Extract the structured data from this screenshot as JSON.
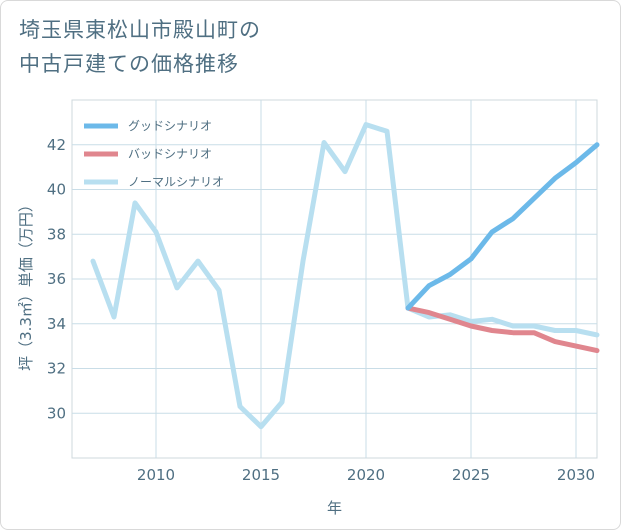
{
  "title_lines": [
    "埼玉県東松山市殿山町の",
    "中古戸建ての価格推移"
  ],
  "chart_data": {
    "type": "line",
    "title": "埼玉県東松山市殿山町の中古戸建ての価格推移",
    "xlabel": "年",
    "ylabel": "坪（3.3㎡）単価（万円）",
    "xlim": [
      2006,
      2031
    ],
    "ylim": [
      28,
      44
    ],
    "xticks": [
      2010,
      2015,
      2020,
      2025,
      2030
    ],
    "yticks": [
      30,
      32,
      34,
      36,
      38,
      40,
      42
    ],
    "grid": true,
    "legend_position": "top-left",
    "series": [
      {
        "name": "グッドシナリオ",
        "color": "#6cb9e9",
        "x": [
          2022,
          2023,
          2024,
          2025,
          2026,
          2027,
          2028,
          2029,
          2030,
          2031
        ],
        "values": [
          34.7,
          35.7,
          36.2,
          36.9,
          38.1,
          38.7,
          39.6,
          40.5,
          41.2,
          42.0
        ]
      },
      {
        "name": "バッドシナリオ",
        "color": "#e0868e",
        "x": [
          2022,
          2023,
          2024,
          2025,
          2026,
          2027,
          2028,
          2029,
          2030,
          2031
        ],
        "values": [
          34.7,
          34.5,
          34.2,
          33.9,
          33.7,
          33.6,
          33.6,
          33.2,
          33.0,
          32.8
        ]
      },
      {
        "name": "ノーマルシナリオ",
        "color": "#b8dff0",
        "x": [
          2007,
          2008,
          2009,
          2010,
          2011,
          2012,
          2013,
          2014,
          2015,
          2016,
          2017,
          2018,
          2019,
          2020,
          2021,
          2022,
          2023,
          2024,
          2025,
          2026,
          2027,
          2028,
          2029,
          2030,
          2031
        ],
        "values": [
          36.8,
          34.3,
          39.4,
          38.1,
          35.6,
          36.8,
          35.5,
          30.3,
          29.4,
          30.5,
          36.8,
          42.1,
          40.8,
          42.9,
          42.6,
          34.7,
          34.3,
          34.4,
          34.1,
          34.2,
          33.9,
          33.9,
          33.7,
          33.7,
          33.5
        ]
      }
    ]
  }
}
